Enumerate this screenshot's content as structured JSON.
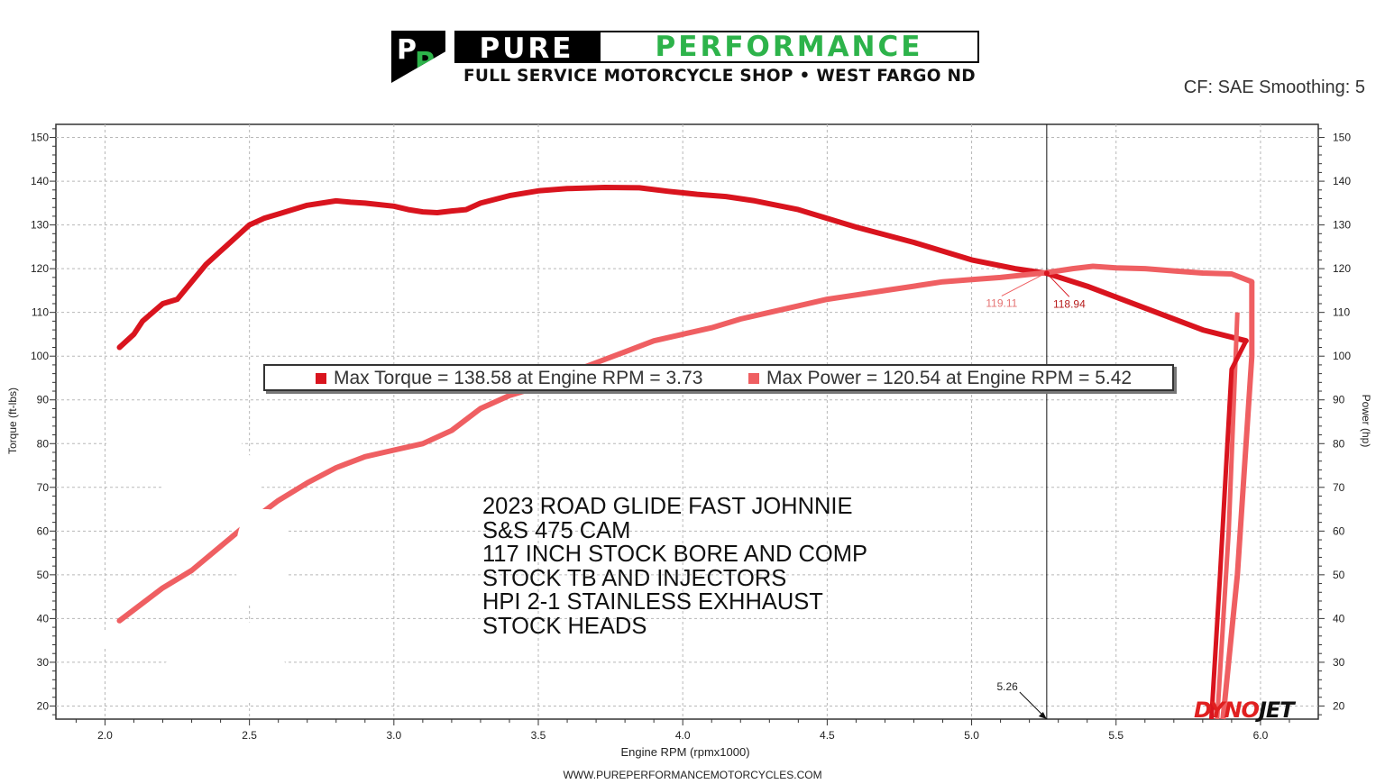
{
  "header": {
    "logo_mark": [
      "P",
      "P"
    ],
    "logo_word_1": "PURE",
    "logo_word_2": "PERFORMANCE",
    "logo_tagline": "FULL SERVICE MOTORCYCLE SHOP • WEST FARGO ND",
    "cf_text": "CF: SAE Smoothing: 5"
  },
  "footer": {
    "url": "WWW.PUREPERFORMANCEMOTORCYCLES.COM"
  },
  "watermark": {
    "text_1": "DYNO",
    "text_2": "JET"
  },
  "notes": [
    "2023 ROAD GLIDE FAST JOHNNIE",
    "S&S 475 CAM",
    "117 INCH STOCK BORE AND COMP",
    "STOCK TB AND INJECTORS",
    "HPI 2-1 STAINLESS EXHHAUST",
    "STOCK HEADS"
  ],
  "legend": {
    "torque": "Max Torque = 138.58 at Engine RPM = 3.73",
    "power": "Max Power = 120.54 at Engine RPM = 5.42"
  },
  "colors": {
    "torque": "#d9141e",
    "power": "#ef5f62",
    "grid": "#b8b8b8",
    "axis": "#333333"
  },
  "chart_data": {
    "type": "line",
    "xlabel": "Engine RPM (rpmx1000)",
    "ylabel_left": "Torque (ft-lbs)",
    "ylabel_right": "Power (hp)",
    "xlim": [
      1.83,
      6.2
    ],
    "ylim": [
      17,
      153
    ],
    "x_ticks": [
      "2.0",
      "2.5",
      "3.0",
      "3.5",
      "4.0",
      "4.5",
      "5.0",
      "5.5",
      "6.0"
    ],
    "y_ticks": [
      "20",
      "30",
      "40",
      "50",
      "60",
      "70",
      "80",
      "90",
      "100",
      "110",
      "120",
      "130",
      "140",
      "150"
    ],
    "grid": true,
    "series": [
      {
        "name": "Torque",
        "x": [
          2.05,
          2.1,
          2.13,
          2.2,
          2.25,
          2.3,
          2.35,
          2.4,
          2.45,
          2.5,
          2.55,
          2.6,
          2.7,
          2.8,
          2.85,
          2.9,
          3.0,
          3.05,
          3.1,
          3.15,
          3.2,
          3.25,
          3.3,
          3.4,
          3.5,
          3.6,
          3.73,
          3.85,
          3.95,
          4.05,
          4.15,
          4.25,
          4.4,
          4.6,
          4.8,
          5.0,
          5.15,
          5.26,
          5.4,
          5.6,
          5.8,
          5.95
        ],
        "values": [
          102,
          105,
          108,
          112,
          113,
          117,
          121,
          124,
          127,
          130,
          131.5,
          132.5,
          134.5,
          135.5,
          135.2,
          135,
          134.3,
          133.5,
          133,
          132.8,
          133.2,
          133.5,
          135,
          136.7,
          137.8,
          138.3,
          138.58,
          138.5,
          137.7,
          137,
          136.5,
          135.5,
          133.5,
          129.5,
          126,
          122,
          120,
          118.94,
          116,
          111,
          106,
          103.5
        ]
      },
      {
        "name": "Power",
        "x": [
          2.05,
          2.1,
          2.2,
          2.3,
          2.4,
          2.5,
          2.6,
          2.7,
          2.8,
          2.9,
          3.0,
          3.1,
          3.2,
          3.3,
          3.4,
          3.5,
          3.6,
          3.7,
          3.8,
          3.9,
          4.0,
          4.1,
          4.2,
          4.3,
          4.4,
          4.5,
          4.6,
          4.7,
          4.8,
          4.9,
          5.0,
          5.1,
          5.26,
          5.35,
          5.42,
          5.5,
          5.6,
          5.7,
          5.8,
          5.9,
          5.97
        ],
        "values": [
          39.5,
          42,
          47,
          51,
          56.5,
          62,
          67,
          71,
          74.5,
          77,
          78.5,
          80,
          83,
          88,
          91,
          93,
          96,
          98.5,
          101,
          103.5,
          105,
          106.5,
          108.5,
          110,
          111.5,
          113,
          114,
          115,
          116,
          117,
          117.5,
          118,
          119.11,
          120,
          120.54,
          120.2,
          120,
          119.5,
          119,
          118.8,
          117
        ]
      }
    ],
    "annotations": [
      {
        "text": "119.11",
        "x": 5.26,
        "y": 119.11,
        "series": "Power"
      },
      {
        "text": "118.94",
        "x": 5.26,
        "y": 118.94,
        "series": "Torque"
      },
      {
        "text": "5.26",
        "x": 5.26,
        "type": "cursor"
      }
    ]
  }
}
